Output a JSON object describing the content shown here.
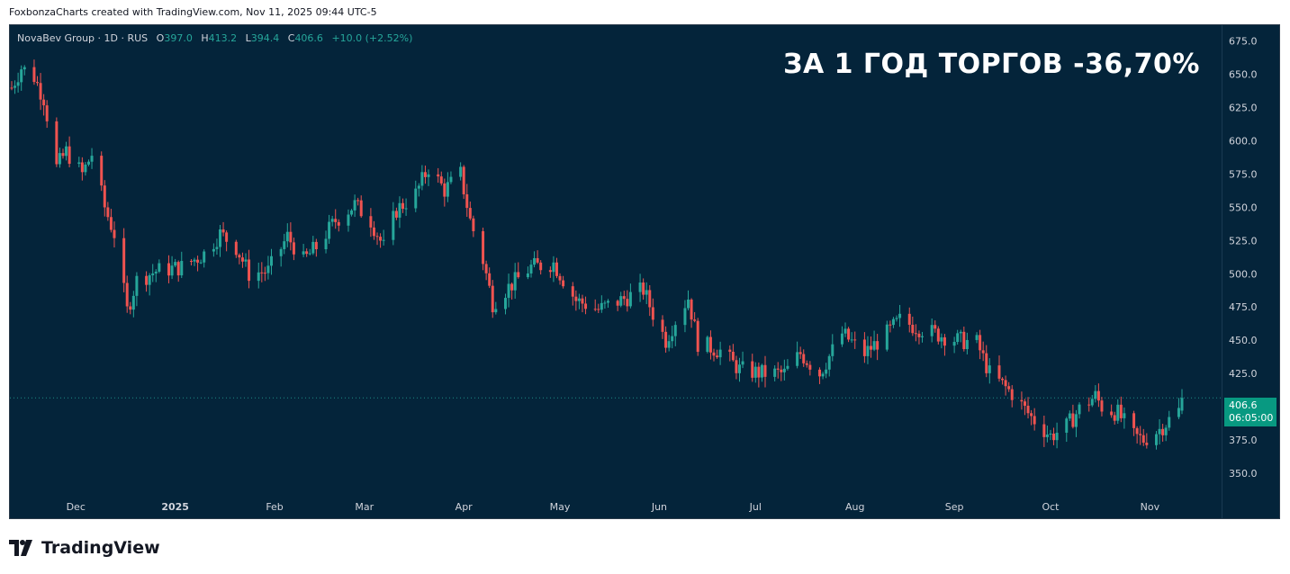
{
  "attribution": "FoxbonzaCharts created with TradingView.com, Nov 11, 2025 09:44 UTC-5",
  "legend": {
    "symbol": "NovaBev Group · 1D · RUS",
    "o_label": "O",
    "o": "397.0",
    "h_label": "H",
    "h": "413.2",
    "l_label": "L",
    "l": "394.4",
    "c_label": "C",
    "c": "406.6",
    "change": "+10.0 (+2.52%)"
  },
  "headline": "ЗА 1 ГОД ТОРГОВ -36,70%",
  "price_badge": {
    "price": "406.6",
    "countdown": "06:05:00"
  },
  "footer_brand": "TradingView",
  "colors": {
    "background": "#04243a",
    "up": "#26a69a",
    "down": "#ef5350",
    "badge": "#089981"
  },
  "chart_data": {
    "type": "candlestick",
    "ylim": [
      335,
      687
    ],
    "y_ticks": [
      "675.0",
      "650.0",
      "625.0",
      "600.0",
      "575.0",
      "550.0",
      "525.0",
      "500.0",
      "475.0",
      "450.0",
      "425.0",
      "400.0",
      "375.0",
      "350.0"
    ],
    "x_ticks": [
      {
        "label": "Dec",
        "bold": false,
        "date": "2024-12-01"
      },
      {
        "label": "2025",
        "bold": true,
        "date": "2025-01-01"
      },
      {
        "label": "Feb",
        "bold": false,
        "date": "2025-02-01"
      },
      {
        "label": "Mar",
        "bold": false,
        "date": "2025-03-01"
      },
      {
        "label": "Apr",
        "bold": false,
        "date": "2025-04-01"
      },
      {
        "label": "May",
        "bold": false,
        "date": "2025-05-01"
      },
      {
        "label": "Jun",
        "bold": false,
        "date": "2025-06-01"
      },
      {
        "label": "Jul",
        "bold": false,
        "date": "2025-07-01"
      },
      {
        "label": "Aug",
        "bold": false,
        "date": "2025-08-01"
      },
      {
        "label": "Sep",
        "bold": false,
        "date": "2025-09-01"
      },
      {
        "label": "Oct",
        "bold": false,
        "date": "2025-10-01"
      },
      {
        "label": "Nov",
        "bold": false,
        "date": "2025-11-01"
      }
    ],
    "last_price": 406.6,
    "close_path": [
      [
        "2024-11-11",
        640
      ],
      [
        "2024-11-14",
        655
      ],
      [
        "2024-11-18",
        648
      ],
      [
        "2024-11-21",
        632
      ],
      [
        "2024-11-25",
        580
      ],
      [
        "2024-11-28",
        592
      ],
      [
        "2024-12-03",
        575
      ],
      [
        "2024-12-06",
        590
      ],
      [
        "2024-12-10",
        550
      ],
      [
        "2024-12-13",
        530
      ],
      [
        "2024-12-17",
        472
      ],
      [
        "2024-12-20",
        495
      ],
      [
        "2024-12-26",
        502
      ],
      [
        "2025-01-03",
        505
      ],
      [
        "2025-01-10",
        515
      ],
      [
        "2025-01-15",
        530
      ],
      [
        "2025-01-20",
        520
      ],
      [
        "2025-01-24",
        500
      ],
      [
        "2025-01-30",
        502
      ],
      [
        "2025-02-05",
        528
      ],
      [
        "2025-02-10",
        510
      ],
      [
        "2025-02-14",
        520
      ],
      [
        "2025-02-20",
        540
      ],
      [
        "2025-02-26",
        552
      ],
      [
        "2025-03-03",
        540
      ],
      [
        "2025-03-07",
        520
      ],
      [
        "2025-03-11",
        548
      ],
      [
        "2025-03-17",
        560
      ],
      [
        "2025-03-21",
        580
      ],
      [
        "2025-03-26",
        563
      ],
      [
        "2025-03-31",
        575
      ],
      [
        "2025-04-03",
        540
      ],
      [
        "2025-04-07",
        510
      ],
      [
        "2025-04-10",
        478
      ],
      [
        "2025-04-15",
        490
      ],
      [
        "2025-04-22",
        505
      ],
      [
        "2025-04-29",
        508
      ],
      [
        "2025-05-06",
        480
      ],
      [
        "2025-05-13",
        473
      ],
      [
        "2025-05-20",
        480
      ],
      [
        "2025-05-27",
        488
      ],
      [
        "2025-05-30",
        470
      ],
      [
        "2025-06-03",
        450
      ],
      [
        "2025-06-06",
        465
      ],
      [
        "2025-06-10",
        482
      ],
      [
        "2025-06-13",
        448
      ],
      [
        "2025-06-20",
        442
      ],
      [
        "2025-06-26",
        428
      ],
      [
        "2025-07-03",
        425
      ],
      [
        "2025-07-10",
        425
      ],
      [
        "2025-07-15",
        440
      ],
      [
        "2025-07-21",
        425
      ],
      [
        "2025-07-28",
        455
      ],
      [
        "2025-08-04",
        440
      ],
      [
        "2025-08-11",
        455
      ],
      [
        "2025-08-15",
        465
      ],
      [
        "2025-08-20",
        460
      ],
      [
        "2025-08-26",
        455
      ],
      [
        "2025-09-02",
        450
      ],
      [
        "2025-09-08",
        448
      ],
      [
        "2025-09-12",
        425
      ],
      [
        "2025-09-19",
        410
      ],
      [
        "2025-09-25",
        392
      ],
      [
        "2025-10-01",
        378
      ],
      [
        "2025-10-06",
        385
      ],
      [
        "2025-10-10",
        398
      ],
      [
        "2025-10-15",
        408
      ],
      [
        "2025-10-17",
        400
      ],
      [
        "2025-10-22",
        395
      ],
      [
        "2025-10-27",
        378
      ],
      [
        "2025-10-30",
        375
      ],
      [
        "2025-11-04",
        383
      ],
      [
        "2025-11-07",
        390
      ],
      [
        "2025-11-10",
        397
      ],
      [
        "2025-11-11",
        406.6
      ]
    ]
  }
}
